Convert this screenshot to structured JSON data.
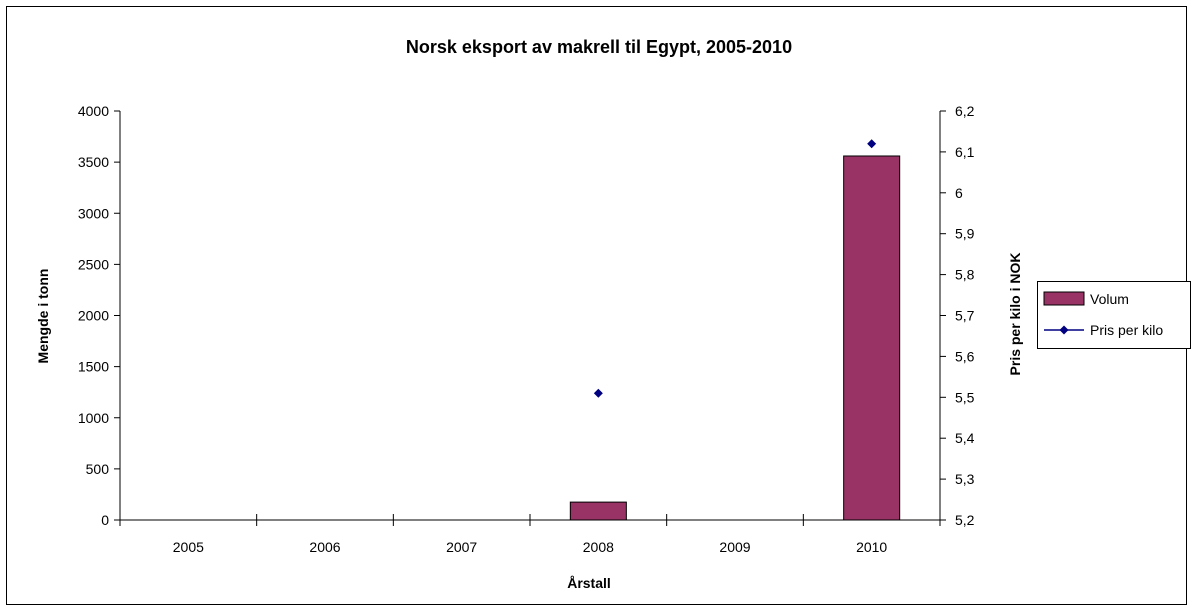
{
  "chart_data": {
    "type": "bar",
    "title": "Norsk eksport av makrell til Egypt, 2005-2010",
    "xlabel": "Årstall",
    "ylabel": "Mengde i tonn",
    "y2label": "Pris per kilo i NOK",
    "categories": [
      "2005",
      "2006",
      "2007",
      "2008",
      "2009",
      "2010"
    ],
    "ylim": [
      0,
      4000
    ],
    "yticks": [
      "0",
      "500",
      "1000",
      "1500",
      "2000",
      "2500",
      "3000",
      "3500",
      "4000"
    ],
    "ytick_values": [
      0,
      500,
      1000,
      1500,
      2000,
      2500,
      3000,
      3500,
      4000
    ],
    "y2lim": [
      5.2,
      6.2
    ],
    "y2ticks": [
      "5,2",
      "5,3",
      "5,4",
      "5,5",
      "5,6",
      "5,7",
      "5,8",
      "5,9",
      "6",
      "6,1",
      "6,2"
    ],
    "y2tick_values": [
      5.2,
      5.3,
      5.4,
      5.5,
      5.6,
      5.7,
      5.8,
      5.9,
      6.0,
      6.1,
      6.2
    ],
    "grid": false,
    "legend_position": "right",
    "series": [
      {
        "name": "Volum",
        "type": "bar",
        "axis": "left",
        "color": "#993366",
        "values": [
          null,
          null,
          null,
          175,
          null,
          3560
        ]
      },
      {
        "name": "Pris per kilo",
        "type": "line",
        "axis": "right",
        "color": "#000080",
        "marker": "diamond",
        "values": [
          null,
          null,
          null,
          5.51,
          null,
          6.12
        ]
      }
    ]
  }
}
